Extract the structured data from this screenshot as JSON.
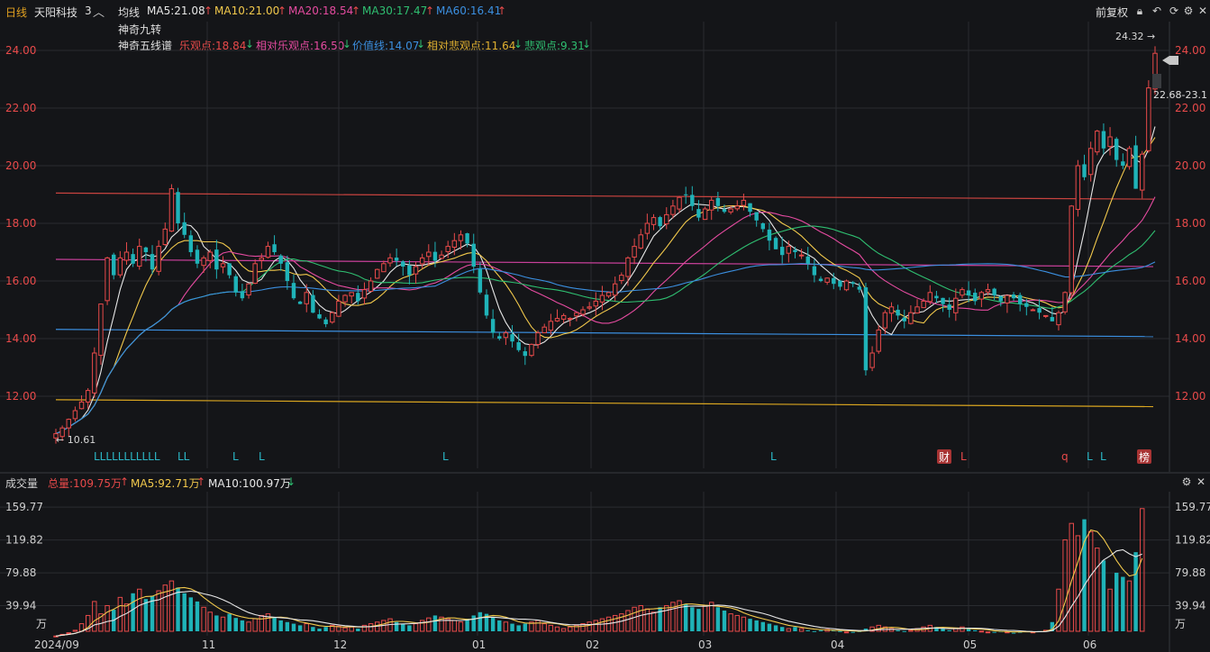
{
  "header": {
    "period": "日线",
    "stock_name": "天阳科技",
    "layout_count": "3",
    "indicator": "均线",
    "ma_values": [
      {
        "label": "MA5:21.08",
        "color": "#e8e8e8"
      },
      {
        "label": "MA10:21.00",
        "color": "#f2c94c"
      },
      {
        "label": "MA20:18.54",
        "color": "#e54ba0"
      },
      {
        "label": "MA30:17.47",
        "color": "#2fbf71"
      },
      {
        "label": "MA60:16.41",
        "color": "#3b8fe0"
      }
    ],
    "adjust": "前复权",
    "line2": "神奇九转",
    "line3_title": "神奇五线谱",
    "five_lines": [
      {
        "label": "乐观点:18.84",
        "color": "#e84a4a"
      },
      {
        "label": "相对乐观点:16.50",
        "color": "#e54ba0"
      },
      {
        "label": "价值线:14.07",
        "color": "#3b8fe0"
      },
      {
        "label": "相对悲观点:11.64",
        "color": "#e0b030"
      },
      {
        "label": "悲观点:9.31",
        "color": "#2fbf71"
      }
    ]
  },
  "volume_header": {
    "title": "成交量",
    "total": "总量:109.75万",
    "ma5": "MA5:92.71万",
    "ma10": "MA10:100.97万"
  },
  "icons": [
    "lock-icon",
    "undo-icon",
    "refresh-icon",
    "settings-icon",
    "close-icon",
    "volume-close-icon"
  ],
  "colors": {
    "up": "#e84a4a",
    "down": "#1fb3b8",
    "bg": "#141518",
    "grid": "#2a2c30"
  },
  "chart_data": [
    {
      "type": "candlestick",
      "title": "",
      "ylim": [
        10.3,
        24.5
      ],
      "y_ticks": [
        "24.00",
        "22.00",
        "20.00",
        "18.00",
        "16.00",
        "14.00",
        "12.00"
      ],
      "x_ticks": [
        "2024/09",
        "11",
        "12",
        "01",
        "02",
        "03",
        "04",
        "05",
        "06"
      ],
      "annotations": {
        "high_label": "24.32",
        "low_label": "10.61",
        "current_range": "22.68-23.1",
        "tags": [
          "财",
          "榜"
        ],
        "l_marks": [
          "LLLLLLLLLLL",
          "LL",
          "L",
          "L",
          "L",
          "L",
          "L",
          "q",
          "L",
          "L"
        ]
      },
      "five_line_levels": {
        "optimistic_start": 19.05,
        "optimistic_end": 18.84,
        "rel_optimistic_start": 16.75,
        "rel_optimistic_end": 16.5,
        "value_line_start": 14.32,
        "value_line_end": 14.07,
        "rel_pessimistic_start": 11.88,
        "rel_pessimistic_end": 11.64
      },
      "closes": [
        10.7,
        10.9,
        11.2,
        11.5,
        11.8,
        12.2,
        13.5,
        15.2,
        16.8,
        16.2,
        16.8,
        17.0,
        16.6,
        17.2,
        17.0,
        16.4,
        17.2,
        17.8,
        19.2,
        18.0,
        17.6,
        17.0,
        16.6,
        16.8,
        17.0,
        16.4,
        16.6,
        16.2,
        15.6,
        15.4,
        15.9,
        16.6,
        16.8,
        17.2,
        17.0,
        16.6,
        16.0,
        15.4,
        15.2,
        15.6,
        14.9,
        14.7,
        14.5,
        14.9,
        15.3,
        15.5,
        15.6,
        15.3,
        15.7,
        16.0,
        16.4,
        16.6,
        16.8,
        16.7,
        16.5,
        16.2,
        16.5,
        16.8,
        17.0,
        16.7,
        16.9,
        17.2,
        17.4,
        17.6,
        17.3,
        16.5,
        15.6,
        14.8,
        14.2,
        14.0,
        14.2,
        13.9,
        13.6,
        13.4,
        13.8,
        14.2,
        14.4,
        14.6,
        14.7,
        14.8,
        14.7,
        14.9,
        15.0,
        15.1,
        15.3,
        15.5,
        15.6,
        15.9,
        16.2,
        16.8,
        17.2,
        17.6,
        18.0,
        18.2,
        17.9,
        18.3,
        18.6,
        18.9,
        19.0,
        18.6,
        18.2,
        18.5,
        18.8,
        18.6,
        18.4,
        18.5,
        18.6,
        18.8,
        18.4,
        18.1,
        17.8,
        17.4,
        17.1,
        16.9,
        17.2,
        17.0,
        16.9,
        16.6,
        16.2,
        16.0,
        16.1,
        15.9,
        15.8,
        16.0,
        15.9,
        15.7,
        12.9,
        13.5,
        14.3,
        14.9,
        15.1,
        14.8,
        14.6,
        14.9,
        15.1,
        15.3,
        15.6,
        15.4,
        15.2,
        15.0,
        15.4,
        15.7,
        15.5,
        15.3,
        15.6,
        15.7,
        15.5,
        15.3,
        15.5,
        15.4,
        15.2,
        15.1,
        15.0,
        14.9,
        14.8,
        14.6,
        14.9,
        15.6,
        18.6,
        20.0,
        19.6,
        20.6,
        21.2,
        20.6,
        21.0,
        20.2,
        20.0,
        20.6,
        19.2,
        20.4,
        22.7,
        23.9
      ]
    },
    {
      "type": "bar",
      "title": "成交量",
      "ylim": [
        0,
        163
      ],
      "y_ticks": [
        "159.77",
        "119.82",
        "79.88",
        "39.94"
      ],
      "unit": "万",
      "values": [
        3,
        5,
        7,
        10,
        18,
        28,
        45,
        30,
        40,
        35,
        50,
        42,
        55,
        60,
        48,
        52,
        58,
        65,
        70,
        62,
        55,
        50,
        45,
        38,
        32,
        28,
        26,
        30,
        25,
        22,
        20,
        24,
        28,
        30,
        26,
        22,
        20,
        18,
        16,
        18,
        14,
        12,
        14,
        16,
        15,
        13,
        14,
        12,
        16,
        18,
        20,
        22,
        24,
        20,
        18,
        16,
        18,
        22,
        25,
        28,
        26,
        24,
        22,
        20,
        24,
        28,
        32,
        30,
        26,
        22,
        20,
        18,
        16,
        18,
        20,
        22,
        18,
        16,
        14,
        12,
        14,
        16,
        18,
        20,
        22,
        24,
        26,
        28,
        30,
        34,
        38,
        40,
        36,
        32,
        38,
        40,
        44,
        46,
        42,
        38,
        36,
        40,
        44,
        38,
        34,
        30,
        28,
        26,
        24,
        22,
        20,
        18,
        16,
        14,
        12,
        14,
        12,
        10,
        9,
        10,
        11,
        10,
        9,
        8,
        8,
        9,
        12,
        14,
        16,
        14,
        12,
        10,
        9,
        10,
        12,
        14,
        16,
        14,
        12,
        10,
        12,
        14,
        12,
        10,
        9,
        8,
        8,
        9,
        8,
        7,
        8,
        9,
        8,
        9,
        10,
        20,
        60,
        120,
        140,
        125,
        145,
        130,
        110,
        95,
        60,
        80,
        75,
        70,
        105,
        158
      ],
      "ma_labels": [
        "MA5",
        "MA10"
      ]
    }
  ]
}
